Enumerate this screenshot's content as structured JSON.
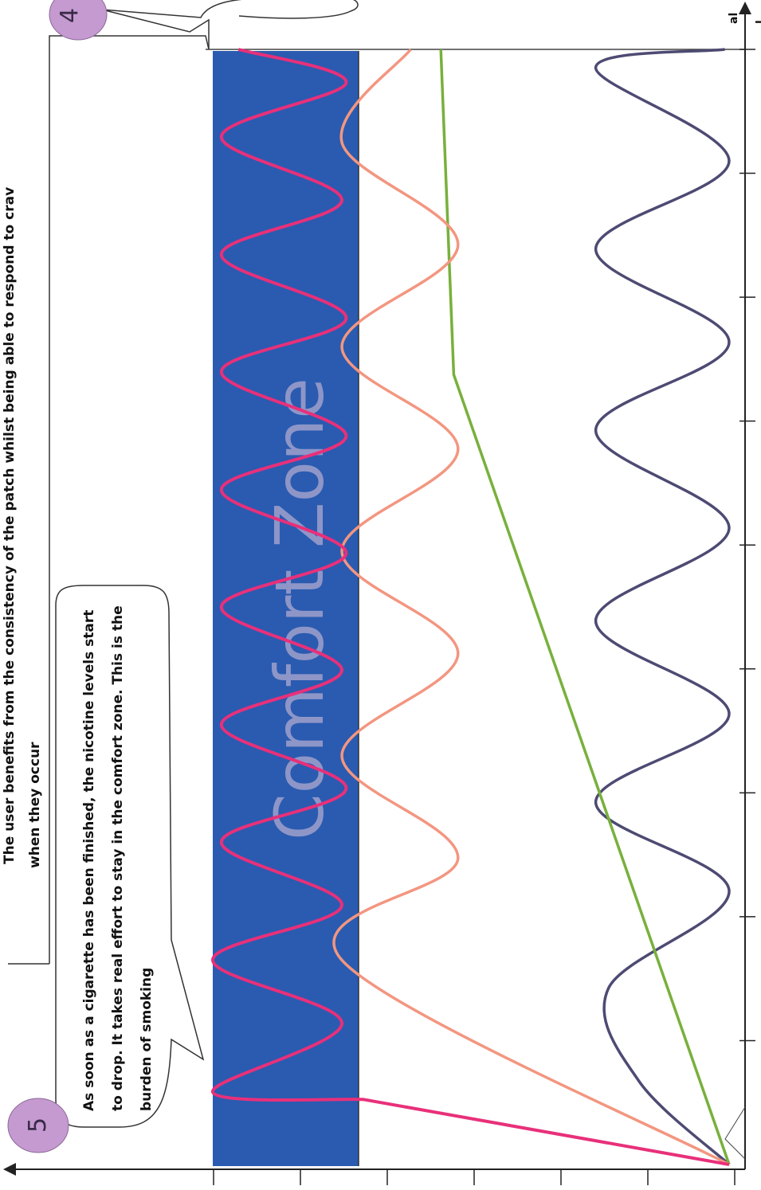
{
  "annotations": {
    "intro_line1": "The user benefits from the consistency of the patch whilst being able to respond to crav",
    "intro_line2": "when they occur",
    "callout5": "As soon as a cigarette has been finished, the nicotine levels start to drop. It takes real effort to stay in the comfort zone. This is the burden of smoking",
    "badge5": "5",
    "badge4": "4",
    "callout4_fragment": "al\nl\nle"
  },
  "colors": {
    "comfort_band": "#2a5bb0",
    "cigarette": "#e8307a",
    "lozenge": "#f39680",
    "patch": "#78b03c",
    "gum": "#4d4a73",
    "badge": "#c49ad0",
    "band_text": "#8e96c8"
  },
  "chart_data": {
    "type": "line",
    "title": "",
    "xlabel": "",
    "ylabel": "",
    "orientation": "rotated-90-ccw",
    "xlim": [
      0,
      12
    ],
    "ylim": [
      0,
      6
    ],
    "comfort_zone": {
      "label": "Comfort Zone",
      "range": [
        4.25,
        6
      ]
    },
    "series": [
      {
        "key": "cigarette",
        "points": [
          [
            0,
            0
          ],
          [
            0.7,
            4.25
          ],
          [
            0.78,
            6.0
          ],
          [
            1.52,
            4.5
          ],
          [
            2.2,
            6.0
          ],
          [
            2.79,
            4.5
          ],
          [
            3.47,
            5.9
          ],
          [
            4.05,
            4.45
          ],
          [
            4.73,
            5.9
          ],
          [
            5.32,
            4.5
          ],
          [
            6.0,
            5.9
          ],
          [
            6.58,
            4.45
          ],
          [
            7.26,
            5.9
          ],
          [
            7.84,
            4.45
          ],
          [
            8.53,
            5.9
          ],
          [
            9.11,
            4.45
          ],
          [
            9.79,
            5.9
          ],
          [
            10.38,
            4.5
          ],
          [
            11.06,
            5.9
          ],
          [
            11.64,
            4.45
          ],
          [
            12.0,
            5.7
          ]
        ]
      },
      {
        "key": "lozenge",
        "points": [
          [
            0,
            0
          ],
          [
            2.2,
            4.5
          ],
          [
            3.3,
            3.15
          ],
          [
            4.4,
            4.5
          ],
          [
            5.5,
            3.15
          ],
          [
            6.6,
            4.5
          ],
          [
            7.7,
            3.15
          ],
          [
            8.8,
            4.5
          ],
          [
            9.9,
            3.15
          ],
          [
            11.0,
            4.5
          ],
          [
            12.0,
            3.7
          ]
        ]
      },
      {
        "key": "patch",
        "points": [
          [
            0,
            0
          ],
          [
            8.5,
            3.2
          ],
          [
            12.0,
            3.35
          ]
        ]
      },
      {
        "key": "gum",
        "points": [
          [
            0,
            0
          ],
          [
            0.9,
            1.05
          ],
          [
            1.9,
            1.4
          ],
          [
            2.95,
            0.0
          ],
          [
            3.9,
            1.55
          ],
          [
            4.85,
            0.0
          ],
          [
            5.85,
            1.55
          ],
          [
            6.85,
            0.0
          ],
          [
            7.9,
            1.55
          ],
          [
            8.85,
            0.0
          ],
          [
            9.85,
            1.55
          ],
          [
            10.8,
            0.0
          ],
          [
            11.8,
            1.55
          ],
          [
            12.0,
            0.05
          ]
        ]
      }
    ]
  }
}
